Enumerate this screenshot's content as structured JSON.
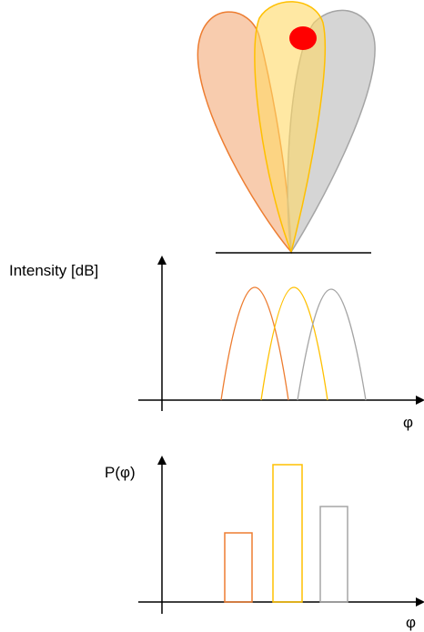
{
  "intensity_plot": {
    "y_label": "Intensity [dB]",
    "x_label": "φ"
  },
  "probability_plot": {
    "y_label": "P(φ)",
    "x_label": "φ"
  }
}
